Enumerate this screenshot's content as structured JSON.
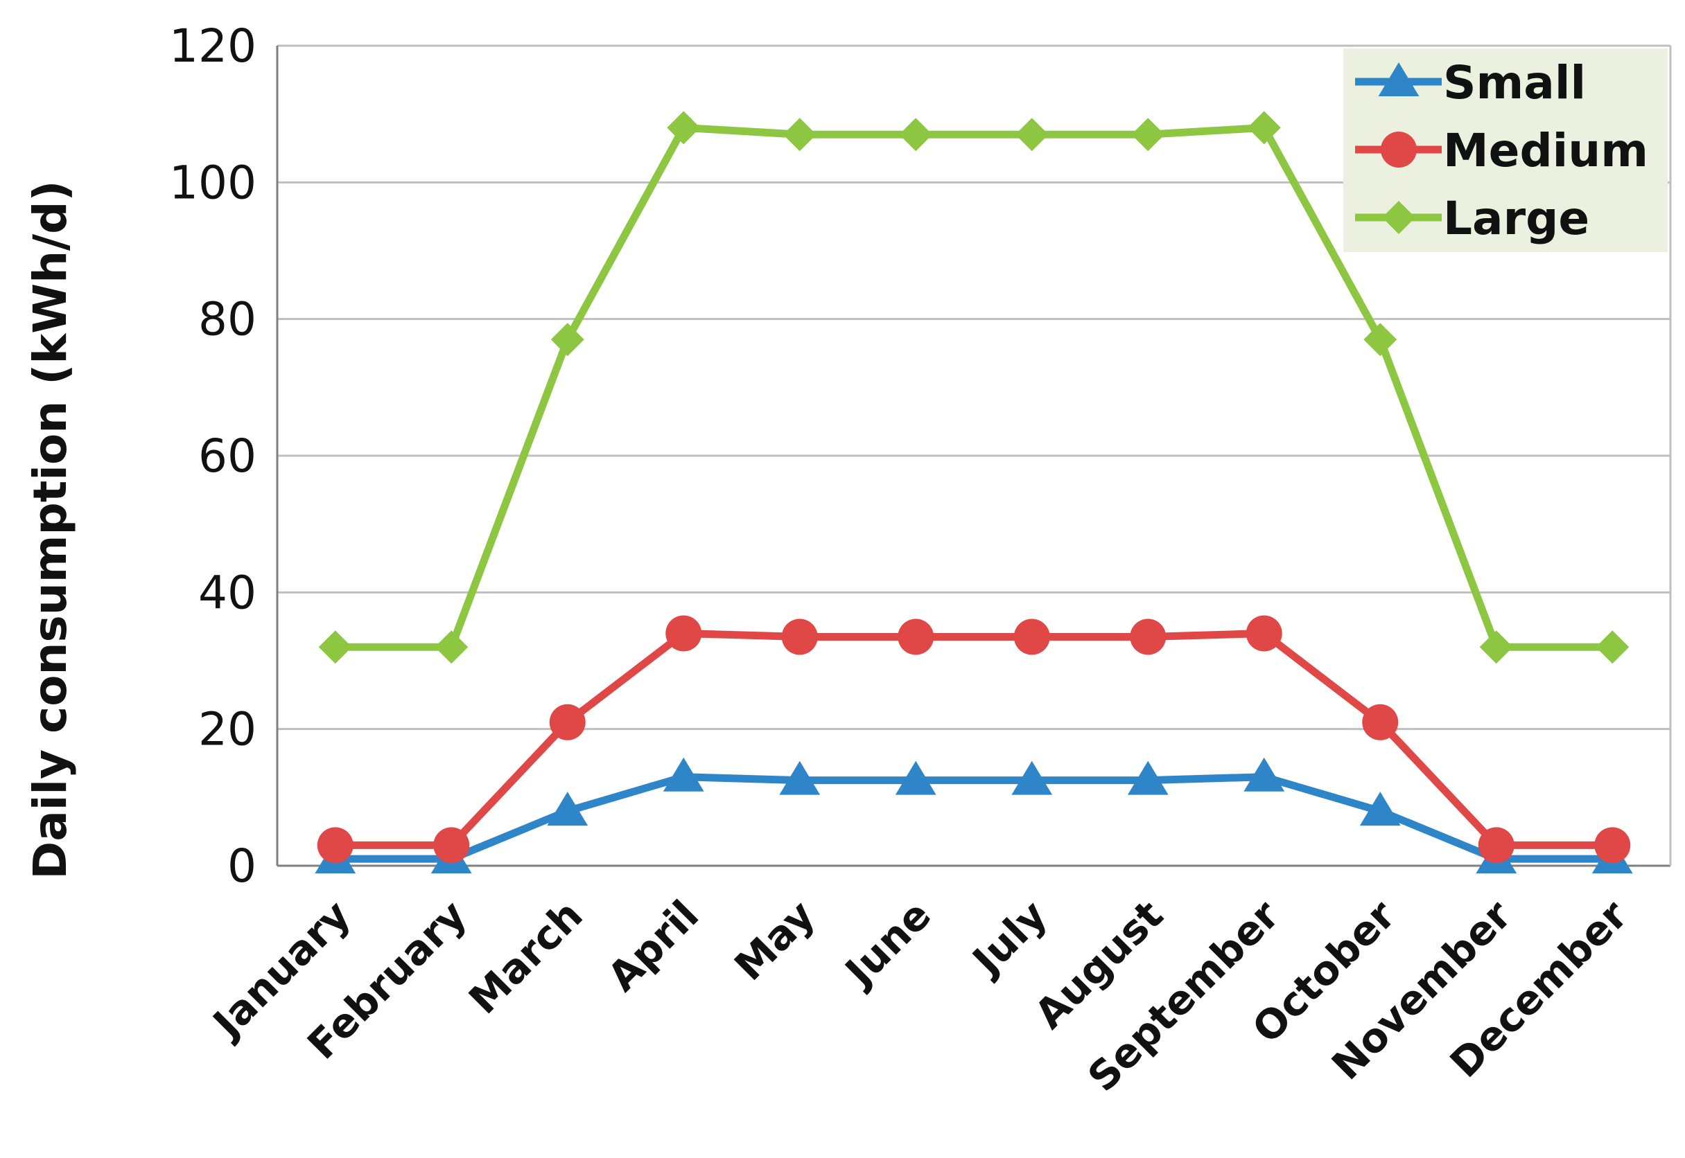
{
  "chart_data": {
    "type": "line",
    "title": "",
    "xlabel": "",
    "ylabel": "Daily consumption (kWh/d)",
    "ylim": [
      0,
      120
    ],
    "yticks": [
      0,
      20,
      40,
      60,
      80,
      100,
      120
    ],
    "grid": "horizontal",
    "legend_position": "top-right",
    "categories": [
      "January",
      "February",
      "March",
      "April",
      "May",
      "June",
      "July",
      "August",
      "September",
      "October",
      "November",
      "December"
    ],
    "series": [
      {
        "name": "Small",
        "marker": "triangle",
        "color": "#2E86C8",
        "values": [
          1,
          1,
          8,
          13,
          12.5,
          12.5,
          12.5,
          12.5,
          13,
          8,
          1,
          1
        ]
      },
      {
        "name": "Medium",
        "marker": "circle",
        "color": "#E04848",
        "values": [
          3,
          3,
          21,
          34,
          33.5,
          33.5,
          33.5,
          33.5,
          34,
          21,
          3,
          3
        ]
      },
      {
        "name": "Large",
        "marker": "diamond",
        "color": "#8DC641",
        "values": [
          32,
          32,
          77,
          108,
          107,
          107,
          107,
          107,
          108,
          77,
          32,
          32
        ]
      }
    ],
    "colors": {
      "grid": "#BFBFBF",
      "legend_bg": "#EBF1DE",
      "axis": "#7F7F7F"
    }
  }
}
